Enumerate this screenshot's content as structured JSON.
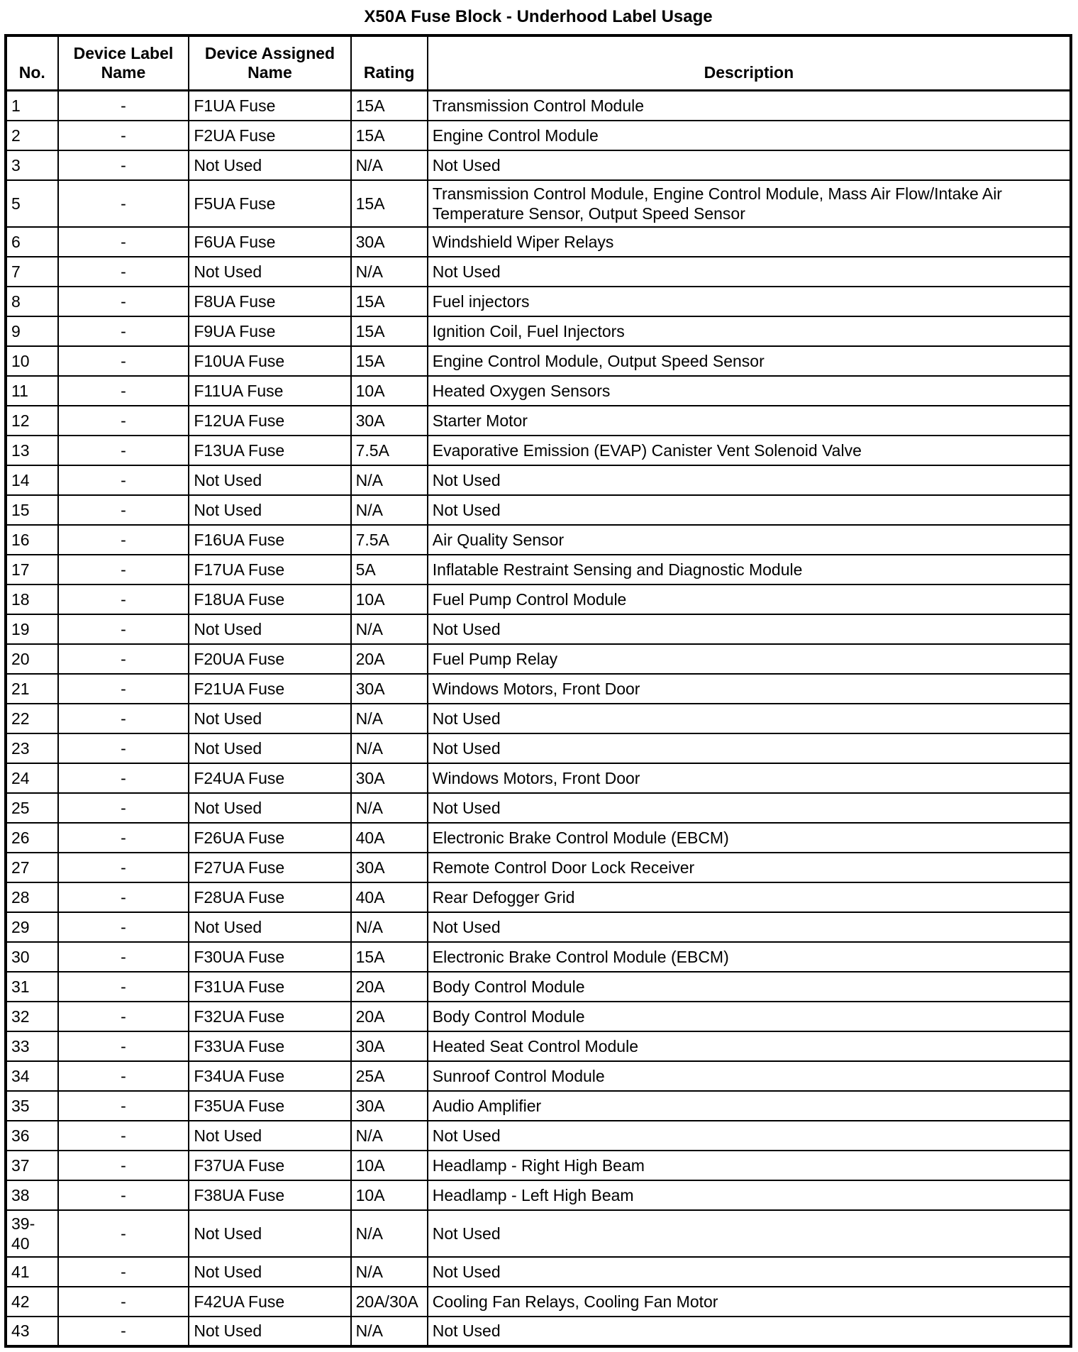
{
  "title": "X50A Fuse Block - Underhood Label Usage",
  "table": {
    "headers": [
      "No.",
      "Device Label Name",
      "Device Assigned Name",
      "Rating",
      "Description"
    ],
    "rows": [
      {
        "no": "1",
        "device_label": "-",
        "device_assigned": "F1UA Fuse",
        "rating": "15A",
        "description": "Transmission Control Module"
      },
      {
        "no": "2",
        "device_label": "-",
        "device_assigned": "F2UA Fuse",
        "rating": "15A",
        "description": "Engine Control Module"
      },
      {
        "no": "3",
        "device_label": "-",
        "device_assigned": "Not Used",
        "rating": "N/A",
        "description": "Not Used"
      },
      {
        "no": "5",
        "device_label": "-",
        "device_assigned": "F5UA Fuse",
        "rating": "15A",
        "description": "Transmission Control Module, Engine Control Module, Mass Air Flow/Intake Air Temperature Sensor, Output Speed Sensor"
      },
      {
        "no": "6",
        "device_label": "-",
        "device_assigned": "F6UA Fuse",
        "rating": "30A",
        "description": "Windshield Wiper Relays"
      },
      {
        "no": "7",
        "device_label": "-",
        "device_assigned": "Not Used",
        "rating": "N/A",
        "description": "Not Used"
      },
      {
        "no": "8",
        "device_label": "-",
        "device_assigned": "F8UA Fuse",
        "rating": "15A",
        "description": "Fuel injectors"
      },
      {
        "no": "9",
        "device_label": "-",
        "device_assigned": "F9UA Fuse",
        "rating": "15A",
        "description": "Ignition Coil, Fuel Injectors"
      },
      {
        "no": "10",
        "device_label": "-",
        "device_assigned": "F10UA Fuse",
        "rating": "15A",
        "description": "Engine Control Module, Output Speed Sensor"
      },
      {
        "no": "11",
        "device_label": "-",
        "device_assigned": "F11UA Fuse",
        "rating": "10A",
        "description": "Heated Oxygen Sensors"
      },
      {
        "no": "12",
        "device_label": "-",
        "device_assigned": "F12UA Fuse",
        "rating": "30A",
        "description": "Starter Motor"
      },
      {
        "no": "13",
        "device_label": "-",
        "device_assigned": "F13UA Fuse",
        "rating": "7.5A",
        "description": "Evaporative Emission (EVAP) Canister Vent Solenoid Valve"
      },
      {
        "no": "14",
        "device_label": "-",
        "device_assigned": "Not Used",
        "rating": "N/A",
        "description": "Not Used"
      },
      {
        "no": "15",
        "device_label": "-",
        "device_assigned": "Not Used",
        "rating": "N/A",
        "description": "Not Used"
      },
      {
        "no": "16",
        "device_label": "-",
        "device_assigned": "F16UA Fuse",
        "rating": "7.5A",
        "description": "Air Quality Sensor"
      },
      {
        "no": "17",
        "device_label": "-",
        "device_assigned": "F17UA Fuse",
        "rating": "5A",
        "description": "Inflatable Restraint Sensing and Diagnostic Module"
      },
      {
        "no": "18",
        "device_label": "-",
        "device_assigned": "F18UA Fuse",
        "rating": "10A",
        "description": "Fuel Pump Control Module"
      },
      {
        "no": "19",
        "device_label": "-",
        "device_assigned": "Not Used",
        "rating": "N/A",
        "description": "Not Used"
      },
      {
        "no": "20",
        "device_label": "-",
        "device_assigned": "F20UA Fuse",
        "rating": "20A",
        "description": "Fuel Pump Relay"
      },
      {
        "no": "21",
        "device_label": "-",
        "device_assigned": "F21UA Fuse",
        "rating": "30A",
        "description": "Windows Motors, Front Door"
      },
      {
        "no": "22",
        "device_label": "-",
        "device_assigned": "Not Used",
        "rating": "N/A",
        "description": "Not Used"
      },
      {
        "no": "23",
        "device_label": "-",
        "device_assigned": "Not Used",
        "rating": "N/A",
        "description": "Not Used"
      },
      {
        "no": "24",
        "device_label": "-",
        "device_assigned": "F24UA Fuse",
        "rating": "30A",
        "description": "Windows Motors, Front Door"
      },
      {
        "no": "25",
        "device_label": "-",
        "device_assigned": "Not Used",
        "rating": "N/A",
        "description": "Not Used"
      },
      {
        "no": "26",
        "device_label": "-",
        "device_assigned": "F26UA Fuse",
        "rating": "40A",
        "description": "Electronic Brake Control Module (EBCM)"
      },
      {
        "no": "27",
        "device_label": "-",
        "device_assigned": "F27UA Fuse",
        "rating": "30A",
        "description": "Remote Control Door Lock Receiver"
      },
      {
        "no": "28",
        "device_label": "-",
        "device_assigned": "F28UA Fuse",
        "rating": "40A",
        "description": "Rear Defogger Grid"
      },
      {
        "no": "29",
        "device_label": "-",
        "device_assigned": "Not Used",
        "rating": "N/A",
        "description": "Not Used"
      },
      {
        "no": "30",
        "device_label": "-",
        "device_assigned": "F30UA Fuse",
        "rating": "15A",
        "description": "Electronic Brake Control Module (EBCM)"
      },
      {
        "no": "31",
        "device_label": "-",
        "device_assigned": "F31UA Fuse",
        "rating": "20A",
        "description": "Body Control Module"
      },
      {
        "no": "32",
        "device_label": "-",
        "device_assigned": "F32UA Fuse",
        "rating": "20A",
        "description": "Body Control Module"
      },
      {
        "no": "33",
        "device_label": "-",
        "device_assigned": "F33UA Fuse",
        "rating": "30A",
        "description": "Heated Seat Control Module"
      },
      {
        "no": "34",
        "device_label": "-",
        "device_assigned": "F34UA Fuse",
        "rating": "25A",
        "description": "Sunroof Control Module"
      },
      {
        "no": "35",
        "device_label": "-",
        "device_assigned": "F35UA Fuse",
        "rating": "30A",
        "description": "Audio Amplifier"
      },
      {
        "no": "36",
        "device_label": "-",
        "device_assigned": "Not Used",
        "rating": "N/A",
        "description": "Not Used"
      },
      {
        "no": "37",
        "device_label": "-",
        "device_assigned": "F37UA Fuse",
        "rating": "10A",
        "description": "Headlamp - Right High Beam"
      },
      {
        "no": "38",
        "device_label": "-",
        "device_assigned": "F38UA Fuse",
        "rating": "10A",
        "description": "Headlamp - Left High Beam"
      },
      {
        "no": "39-40",
        "device_label": "-",
        "device_assigned": "Not Used",
        "rating": "N/A",
        "description": "Not Used"
      },
      {
        "no": "41",
        "device_label": "-",
        "device_assigned": "Not Used",
        "rating": "N/A",
        "description": "Not Used"
      },
      {
        "no": "42",
        "device_label": "-",
        "device_assigned": "F42UA Fuse",
        "rating": "20A/30A",
        "description": "Cooling Fan Relays, Cooling Fan Motor"
      },
      {
        "no": "43",
        "device_label": "-",
        "device_assigned": "Not Used",
        "rating": "N/A",
        "description": "Not Used"
      }
    ]
  }
}
